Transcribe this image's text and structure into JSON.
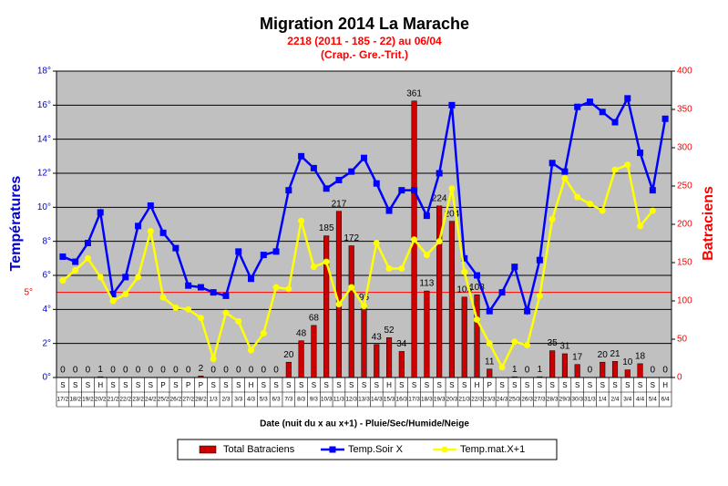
{
  "chart_data": {
    "type": "combo",
    "title": "Migration 2014 La Marache",
    "subtitle": [
      "2218 (2011 - 185 - 22) au 06/04",
      "(Crap.- Gre.-Trit.)"
    ],
    "x_label": "Date (nuit du x au x+1) - Pluie/Sec/Humide/Neige",
    "y_label": "Températures",
    "y2_label": "Batraciens",
    "categories": [
      "17/2",
      "18/2",
      "19/2",
      "20/2",
      "21/2",
      "22/2",
      "23/2",
      "24/2",
      "25/2",
      "26/2",
      "27/2",
      "28/2",
      "1/3",
      "2/3",
      "3/3",
      "4/3",
      "5/3",
      "6/3",
      "7/3",
      "8/3",
      "9/3",
      "10/3",
      "11/3",
      "12/3",
      "13/3",
      "14/3",
      "15/3",
      "16/3",
      "17/3",
      "18/3",
      "19/3",
      "20/3",
      "21/3",
      "22/3",
      "23/3",
      "24/3",
      "25/3",
      "26/3",
      "27/3",
      "28/3",
      "29/3",
      "30/3",
      "31/3",
      "1/4",
      "2/4",
      "3/4",
      "4/4",
      "5/4",
      "6/4"
    ],
    "weather": [
      "S",
      "S",
      "S",
      "H",
      "S",
      "S",
      "S",
      "S",
      "P",
      "S",
      "P",
      "P",
      "S",
      "S",
      "S",
      "H",
      "S",
      "S",
      "S",
      "S",
      "S",
      "S",
      "S",
      "S",
      "S",
      "S",
      "H",
      "S",
      "S",
      "S",
      "S",
      "S",
      "S",
      "H",
      "P",
      "S",
      "S",
      "S",
      "S",
      "S",
      "S",
      "S",
      "S",
      "S",
      "S",
      "S",
      "S",
      "S",
      "H"
    ],
    "series": [
      {
        "name": "Total Batraciens",
        "color": "#cc0000",
        "axis": "y2",
        "values": [
          0,
          0,
          0,
          1,
          0,
          0,
          0,
          0,
          0,
          0,
          0,
          2,
          0,
          0,
          0,
          0,
          0,
          0,
          20,
          48,
          68,
          185,
          217,
          172,
          95,
          43,
          52,
          34,
          361,
          113,
          224,
          204,
          105,
          108,
          11,
          0,
          1,
          0,
          1,
          35,
          31,
          17,
          0,
          20,
          21,
          10,
          18,
          0,
          0
        ],
        "value_labels": [
          "0",
          "0",
          "0",
          "1",
          "0",
          "0",
          "0",
          "0",
          "0",
          "0",
          "0",
          "2",
          "0",
          "0",
          "0",
          "0",
          "0",
          "0",
          "20",
          "48",
          "68",
          "185",
          "217",
          "172",
          "95",
          "43",
          "52",
          "34",
          "361",
          "113",
          "224",
          "204",
          "105",
          "108",
          "11",
          null,
          "1",
          "0",
          "1",
          "35",
          "31",
          "17",
          "0",
          "20",
          "21",
          "10",
          "18",
          "0",
          "0"
        ]
      },
      {
        "name": "Temp.Soir X",
        "color": "#0000ff",
        "values": [
          7.1,
          6.8,
          7.9,
          9.7,
          4.9,
          5.9,
          8.9,
          10.1,
          8.5,
          7.6,
          5.4,
          5.3,
          5.0,
          4.8,
          7.4,
          5.8,
          7.2,
          7.4,
          11.0,
          13.0,
          12.3,
          11.1,
          11.6,
          12.1,
          12.9,
          11.4,
          9.8,
          11.0,
          11.0,
          9.5,
          12.0,
          16.0,
          7.0,
          6.0,
          3.9,
          5.0,
          6.5,
          3.9,
          6.9,
          12.6,
          12.1,
          15.9,
          16.2,
          15.6,
          15.0,
          16.4,
          13.2,
          11.0,
          15.2
        ]
      },
      {
        "name": "Temp.mat.X+1",
        "color": "#ffff00",
        "values": [
          5.7,
          6.3,
          7.0,
          5.9,
          4.5,
          4.9,
          5.9,
          8.6,
          4.7,
          4.1,
          4.0,
          3.5,
          1.1,
          3.8,
          3.3,
          1.6,
          2.6,
          5.3,
          5.2,
          9.2,
          6.5,
          6.8,
          4.3,
          5.3,
          4.2,
          7.9,
          6.4,
          6.4,
          8.1,
          7.2,
          8.0,
          11.1,
          6.2,
          3.4,
          2.0,
          0.6,
          2.1,
          1.9,
          4.8,
          9.3,
          11.7,
          10.6,
          10.2,
          9.8,
          12.2,
          12.5,
          8.9,
          9.8,
          null
        ]
      }
    ],
    "ylim": [
      0,
      18
    ],
    "yticks": [
      {
        "value": 0,
        "label": "0°"
      },
      {
        "value": 2,
        "label": "2°"
      },
      {
        "value": 4,
        "label": "4°"
      },
      {
        "value": 6,
        "label": "6°"
      },
      {
        "value": 8,
        "label": "8°"
      },
      {
        "value": 10,
        "label": "10°"
      },
      {
        "value": 12,
        "label": "12°"
      },
      {
        "value": 14,
        "label": "14°"
      },
      {
        "value": 16,
        "label": "16°"
      },
      {
        "value": 18,
        "label": "18°"
      }
    ],
    "y2lim": [
      0,
      400
    ],
    "y2ticks": [
      0,
      50,
      100,
      150,
      200,
      250,
      300,
      350,
      400
    ],
    "reference_line": {
      "value": 5,
      "label": "5°",
      "color": "#ff0000"
    },
    "grid": true,
    "legend": "bottom"
  }
}
